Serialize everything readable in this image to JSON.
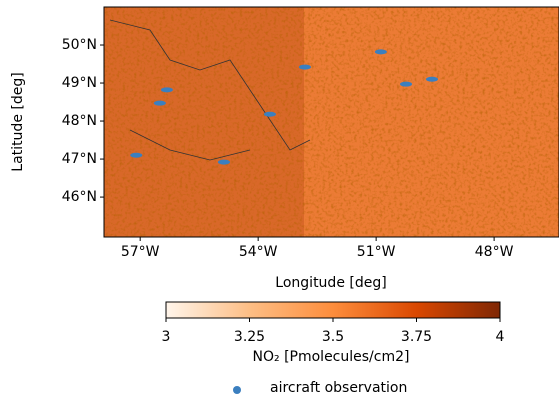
{
  "chart_data": {
    "type": "scatter",
    "xlabel": "Longitude [deg]",
    "ylabel": "Latitude [deg]",
    "xlim": [
      -57.92,
      -46.35
    ],
    "ylim": [
      44.95,
      51.0
    ],
    "xticks": [
      {
        "value": -57,
        "label": "57°W"
      },
      {
        "value": -54,
        "label": "54°W"
      },
      {
        "value": -51,
        "label": "51°W"
      },
      {
        "value": -48,
        "label": "48°W"
      }
    ],
    "yticks": [
      {
        "value": 46,
        "label": "46°N"
      },
      {
        "value": 47,
        "label": "47°N"
      },
      {
        "value": 48,
        "label": "48°N"
      },
      {
        "value": 49,
        "label": "49°N"
      },
      {
        "value": 50,
        "label": "50°N"
      }
    ],
    "colorbar": {
      "label": "NO₂ [Pmolecules/cm2]",
      "lim": [
        3,
        4
      ],
      "ticks": [
        3,
        3.25,
        3.5,
        3.75,
        4
      ],
      "colors": [
        "#fff5eb",
        "#fdbe85",
        "#fd8d3c",
        "#d94801",
        "#7f2704"
      ]
    },
    "series": [
      {
        "name": "aircraft observation",
        "color": "#3b7fbf",
        "x": [
          -56.32,
          -56.5,
          -57.1,
          -54.87,
          -53.7,
          -52.81,
          -50.88,
          -50.24,
          -49.58
        ],
        "values": [
          48.82,
          48.47,
          47.1,
          46.92,
          48.18,
          49.42,
          49.82,
          48.97,
          49.1
        ]
      }
    ]
  }
}
